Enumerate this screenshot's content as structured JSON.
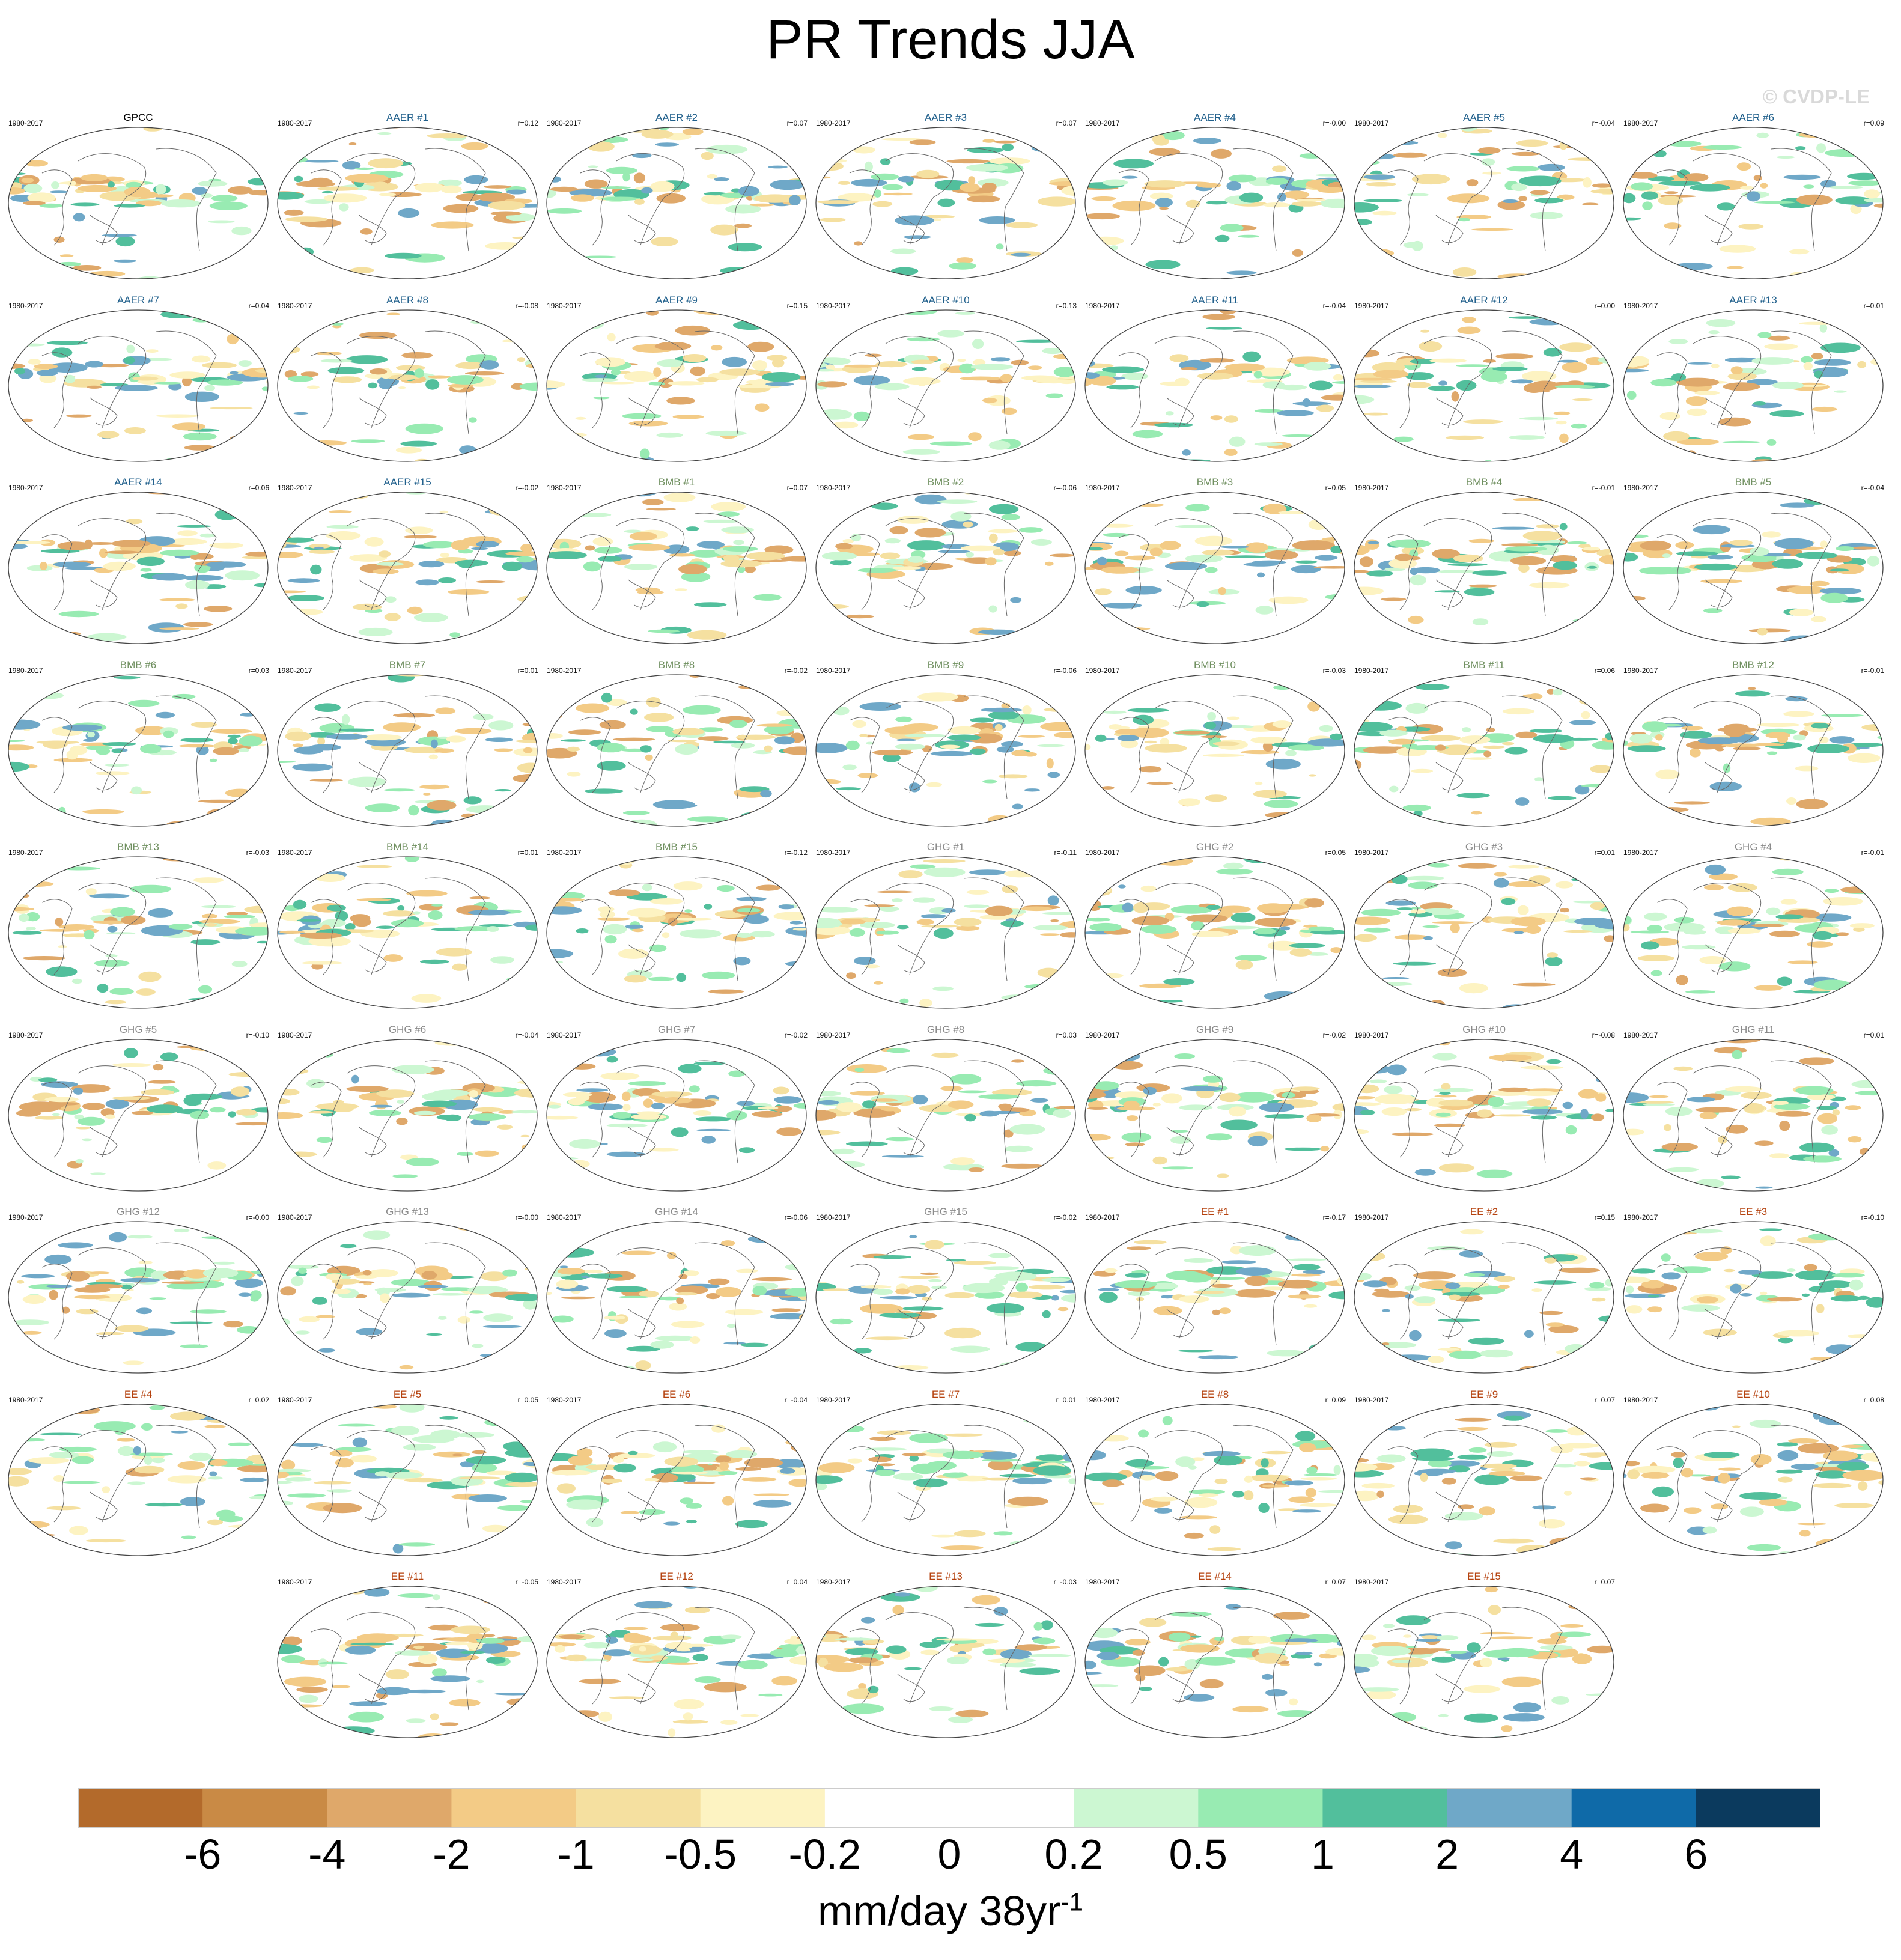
{
  "title": "PR Trends JJA",
  "watermark": "© CVDP-LE",
  "period": "1980-2017",
  "group_colors": {
    "GPCC": "#000000",
    "AAER": "#1f5f8b",
    "BMB": "#6f8f5f",
    "GHG": "#8a8a8a",
    "EE": "#b5420e"
  },
  "panels": [
    {
      "name": "GPCC",
      "group": "GPCC",
      "r": ""
    },
    {
      "name": "AAER #1",
      "group": "AAER",
      "r": "r=0.12"
    },
    {
      "name": "AAER #2",
      "group": "AAER",
      "r": "r=0.07"
    },
    {
      "name": "AAER #3",
      "group": "AAER",
      "r": "r=0.07"
    },
    {
      "name": "AAER #4",
      "group": "AAER",
      "r": "r=-0.00"
    },
    {
      "name": "AAER #5",
      "group": "AAER",
      "r": "r=-0.04"
    },
    {
      "name": "AAER #6",
      "group": "AAER",
      "r": "r=0.09"
    },
    {
      "name": "AAER #7",
      "group": "AAER",
      "r": "r=0.04"
    },
    {
      "name": "AAER #8",
      "group": "AAER",
      "r": "r=-0.08"
    },
    {
      "name": "AAER #9",
      "group": "AAER",
      "r": "r=0.15"
    },
    {
      "name": "AAER #10",
      "group": "AAER",
      "r": "r=0.13"
    },
    {
      "name": "AAER #11",
      "group": "AAER",
      "r": "r=-0.04"
    },
    {
      "name": "AAER #12",
      "group": "AAER",
      "r": "r=0.00"
    },
    {
      "name": "AAER #13",
      "group": "AAER",
      "r": "r=0.01"
    },
    {
      "name": "AAER #14",
      "group": "AAER",
      "r": "r=0.06"
    },
    {
      "name": "AAER #15",
      "group": "AAER",
      "r": "r=-0.02"
    },
    {
      "name": "BMB #1",
      "group": "BMB",
      "r": "r=0.07"
    },
    {
      "name": "BMB #2",
      "group": "BMB",
      "r": "r=-0.06"
    },
    {
      "name": "BMB #3",
      "group": "BMB",
      "r": "r=0.05"
    },
    {
      "name": "BMB #4",
      "group": "BMB",
      "r": "r=-0.01"
    },
    {
      "name": "BMB #5",
      "group": "BMB",
      "r": "r=-0.04"
    },
    {
      "name": "BMB #6",
      "group": "BMB",
      "r": "r=0.03"
    },
    {
      "name": "BMB #7",
      "group": "BMB",
      "r": "r=0.01"
    },
    {
      "name": "BMB #8",
      "group": "BMB",
      "r": "r=-0.02"
    },
    {
      "name": "BMB #9",
      "group": "BMB",
      "r": "r=-0.06"
    },
    {
      "name": "BMB #10",
      "group": "BMB",
      "r": "r=-0.03"
    },
    {
      "name": "BMB #11",
      "group": "BMB",
      "r": "r=0.06"
    },
    {
      "name": "BMB #12",
      "group": "BMB",
      "r": "r=-0.01"
    },
    {
      "name": "BMB #13",
      "group": "BMB",
      "r": "r=-0.03"
    },
    {
      "name": "BMB #14",
      "group": "BMB",
      "r": "r=0.01"
    },
    {
      "name": "BMB #15",
      "group": "BMB",
      "r": "r=-0.12"
    },
    {
      "name": "GHG #1",
      "group": "GHG",
      "r": "r=-0.11"
    },
    {
      "name": "GHG #2",
      "group": "GHG",
      "r": "r=0.05"
    },
    {
      "name": "GHG #3",
      "group": "GHG",
      "r": "r=0.01"
    },
    {
      "name": "GHG #4",
      "group": "GHG",
      "r": "r=-0.01"
    },
    {
      "name": "GHG #5",
      "group": "GHG",
      "r": "r=-0.10"
    },
    {
      "name": "GHG #6",
      "group": "GHG",
      "r": "r=-0.04"
    },
    {
      "name": "GHG #7",
      "group": "GHG",
      "r": "r=-0.02"
    },
    {
      "name": "GHG #8",
      "group": "GHG",
      "r": "r=0.03"
    },
    {
      "name": "GHG #9",
      "group": "GHG",
      "r": "r=-0.02"
    },
    {
      "name": "GHG #10",
      "group": "GHG",
      "r": "r=-0.08"
    },
    {
      "name": "GHG #11",
      "group": "GHG",
      "r": "r=0.01"
    },
    {
      "name": "GHG #12",
      "group": "GHG",
      "r": "r=-0.00"
    },
    {
      "name": "GHG #13",
      "group": "GHG",
      "r": "r=-0.00"
    },
    {
      "name": "GHG #14",
      "group": "GHG",
      "r": "r=-0.06"
    },
    {
      "name": "GHG #15",
      "group": "GHG",
      "r": "r=-0.02"
    },
    {
      "name": "EE #1",
      "group": "EE",
      "r": "r=-0.17"
    },
    {
      "name": "EE #2",
      "group": "EE",
      "r": "r=0.15"
    },
    {
      "name": "EE #3",
      "group": "EE",
      "r": "r=-0.10"
    },
    {
      "name": "EE #4",
      "group": "EE",
      "r": "r=0.02"
    },
    {
      "name": "EE #5",
      "group": "EE",
      "r": "r=0.05"
    },
    {
      "name": "EE #6",
      "group": "EE",
      "r": "r=-0.04"
    },
    {
      "name": "EE #7",
      "group": "EE",
      "r": "r=0.01"
    },
    {
      "name": "EE #8",
      "group": "EE",
      "r": "r=0.09"
    },
    {
      "name": "EE #9",
      "group": "EE",
      "r": "r=0.07"
    },
    {
      "name": "EE #10",
      "group": "EE",
      "r": "r=0.08"
    },
    {
      "name": "EE #11",
      "group": "EE",
      "r": "r=-0.05"
    },
    {
      "name": "EE #12",
      "group": "EE",
      "r": "r=0.04"
    },
    {
      "name": "EE #13",
      "group": "EE",
      "r": "r=-0.03"
    },
    {
      "name": "EE #14",
      "group": "EE",
      "r": "r=0.07"
    },
    {
      "name": "EE #15",
      "group": "EE",
      "r": "r=0.07"
    }
  ],
  "colorbar": {
    "colors": [
      "#b36a2b",
      "#c98a45",
      "#dfa86a",
      "#f3cb86",
      "#f5e0a0",
      "#fdf3c2",
      "#ffffff",
      "#ffffff",
      "#ccf7d2",
      "#98ebb2",
      "#52bf9c",
      "#6fa8c8",
      "#0f6aa8",
      "#0b3a5e"
    ],
    "labels": [
      "-6",
      "-4",
      "-2",
      "-1",
      "-0.5",
      "-0.2",
      "0",
      "0.2",
      "0.5",
      "1",
      "2",
      "4",
      "6"
    ],
    "units": "mm/day 38yr",
    "units_sup": "-1"
  }
}
